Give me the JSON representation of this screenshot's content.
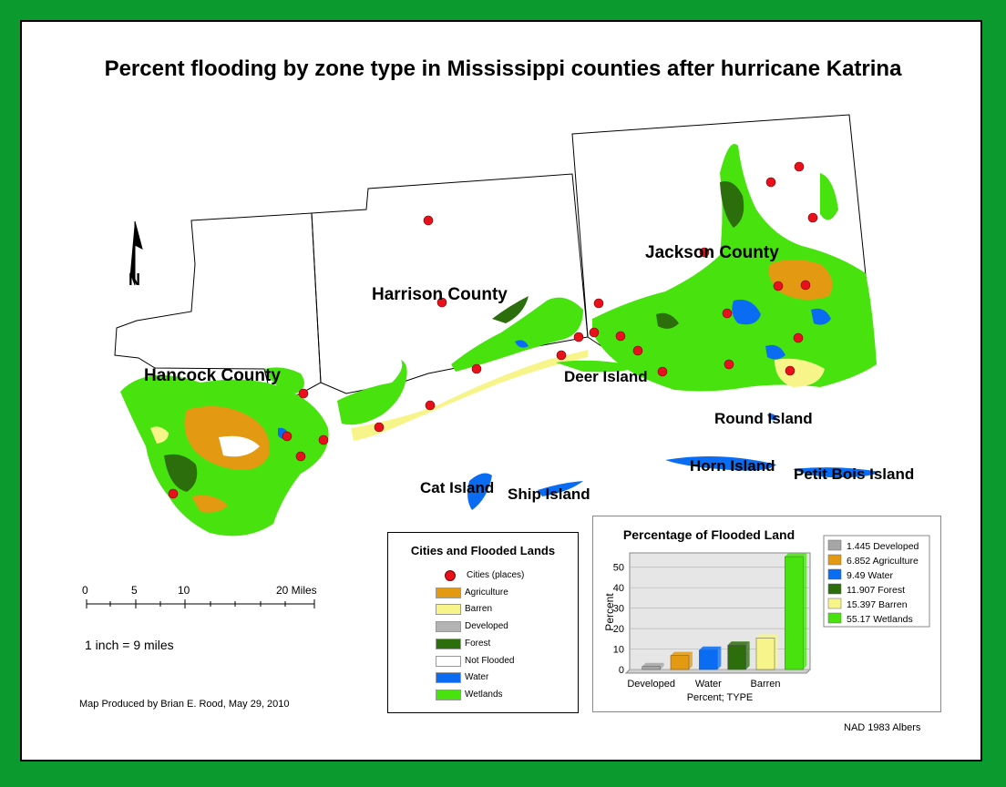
{
  "title": "Percent flooding by zone type in Mississippi counties after hurricane Katrina",
  "counties": [
    {
      "name": "Hancock County"
    },
    {
      "name": "Harrison County"
    },
    {
      "name": "Jackson County"
    }
  ],
  "islands": [
    {
      "name": "Deer Island"
    },
    {
      "name": "Round Island"
    },
    {
      "name": "Horn Island"
    },
    {
      "name": "Petit Bois Island"
    },
    {
      "name": "Cat Island"
    },
    {
      "name": "Ship Island"
    }
  ],
  "north_arrow_label": "N",
  "legend": {
    "title": "Cities and Flooded Lands",
    "items": [
      {
        "label": "Cities (places)",
        "color": "#e8101a",
        "kind": "dot"
      },
      {
        "label": "Agriculture",
        "color": "#e39a12",
        "kind": "box"
      },
      {
        "label": "Barren",
        "color": "#f7f58a",
        "kind": "box"
      },
      {
        "label": "Developed",
        "color": "#b3b3b3",
        "kind": "box"
      },
      {
        "label": "Forest",
        "color": "#2b6e0b",
        "kind": "box"
      },
      {
        "label": "Not Flooded",
        "color": "#ffffff",
        "kind": "box"
      },
      {
        "label": "Water",
        "color": "#0a6cf2",
        "kind": "box"
      },
      {
        "label": "Wetlands",
        "color": "#48e20f",
        "kind": "box"
      }
    ]
  },
  "scale": {
    "ticks": [
      "0",
      "5",
      "10",
      "20 Miles"
    ],
    "ratio_text": "1 inch = 9 miles"
  },
  "credit": "Map Produced by Brian E. Rood, May 29, 2010",
  "projection": "NAD 1983 Albers",
  "chart_data": {
    "type": "bar",
    "title": "Percentage of Flooded Land",
    "xlabel": "Percent; TYPE",
    "ylabel": "Percent",
    "categories": [
      "Developed",
      "Agriculture",
      "Water",
      "Forest",
      "Barren",
      "Wetlands"
    ],
    "tick_labels_shown": [
      "Developed",
      "Water",
      "Barren"
    ],
    "values": [
      1.445,
      6.852,
      9.49,
      11.907,
      15.397,
      55.17
    ],
    "colors": [
      "#a6a6a6",
      "#e39a12",
      "#0a6cf2",
      "#2b6e0b",
      "#f7f58a",
      "#48e20f"
    ],
    "ylim": [
      0,
      55
    ],
    "yticks": [
      "0",
      "10",
      "20",
      "30",
      "40",
      "50"
    ],
    "legend": [
      {
        "label": "1.445 Developed"
      },
      {
        "label": "6.852 Agriculture"
      },
      {
        "label": "9.49 Water"
      },
      {
        "label": "11.907 Forest"
      },
      {
        "label": "15.397 Barren"
      },
      {
        "label": "55.17 Wetlands"
      }
    ],
    "legend_position": "right",
    "grid": true
  }
}
